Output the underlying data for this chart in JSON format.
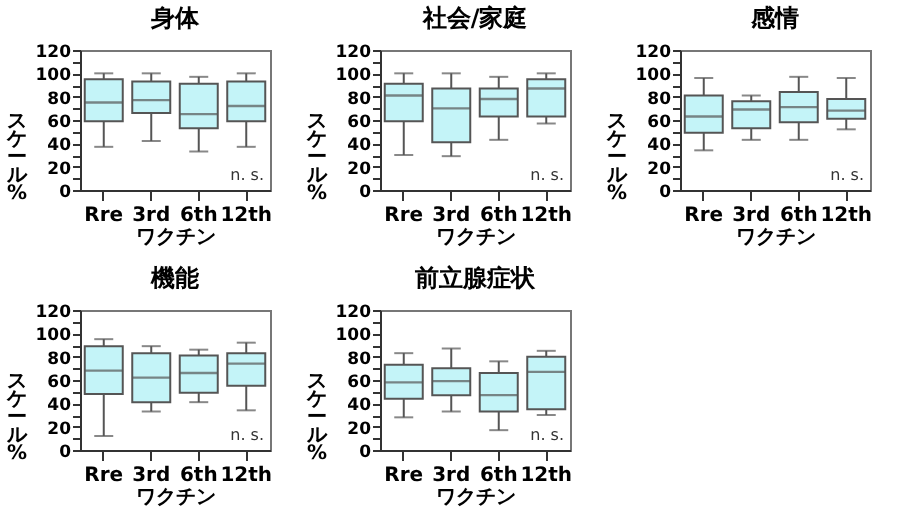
{
  "chart_data": [
    {
      "type": "box",
      "title": "身体",
      "xlabel": "ワクチン",
      "ylabel": "スケール%",
      "categories": [
        "Rre",
        "3rd",
        "6th",
        "12th"
      ],
      "color": "#c4f4f8",
      "ylim": [
        0,
        120
      ],
      "yticks": [
        0,
        {
          "value": 10,
          "label": null
        },
        20,
        {
          "value": 30,
          "label": null
        },
        40,
        {
          "value": 50,
          "label": null
        },
        60,
        {
          "value": 70,
          "label": null
        },
        80,
        {
          "value": 90,
          "label": null
        },
        100,
        {
          "value": 110,
          "label": null
        },
        120
      ],
      "annotations": [
        "n. s."
      ],
      "boxes": [
        {
          "low": 37,
          "q1": 59,
          "median": 75,
          "q3": 95,
          "high": 100
        },
        {
          "low": 42,
          "q1": 66,
          "median": 77,
          "q3": 93,
          "high": 100
        },
        {
          "low": 33,
          "q1": 53,
          "median": 65,
          "q3": 91,
          "high": 97
        },
        {
          "low": 37,
          "q1": 59,
          "median": 72,
          "q3": 93,
          "high": 100
        }
      ]
    },
    {
      "type": "box",
      "title": "社会/家庭",
      "xlabel": "ワクチン",
      "ylabel": "スケール%",
      "categories": [
        "Rre",
        "3rd",
        "6th",
        "12th"
      ],
      "color": "#c4f4f8",
      "ylim": [
        0,
        120
      ],
      "yticks": [
        0,
        {
          "value": 10,
          "label": null
        },
        20,
        {
          "value": 30,
          "label": null
        },
        40,
        {
          "value": 50,
          "label": null
        },
        60,
        {
          "value": 70,
          "label": null
        },
        80,
        {
          "value": 90,
          "label": null
        },
        100,
        {
          "value": 110,
          "label": null
        },
        120
      ],
      "annotations": [
        "n. s."
      ],
      "boxes": [
        {
          "low": 30,
          "q1": 59,
          "median": 81,
          "q3": 91,
          "high": 100
        },
        {
          "low": 29,
          "q1": 41,
          "median": 70,
          "q3": 87,
          "high": 100
        },
        {
          "low": 43,
          "q1": 63,
          "median": 78,
          "q3": 87,
          "high": 97
        },
        {
          "low": 57,
          "q1": 63,
          "median": 87,
          "q3": 95,
          "high": 100
        }
      ]
    },
    {
      "type": "box",
      "title": "感情",
      "xlabel": "ワクチン",
      "ylabel": "スケール%",
      "categories": [
        "Rre",
        "3rd",
        "6th",
        "12th"
      ],
      "color": "#c4f4f8",
      "ylim": [
        0,
        120
      ],
      "yticks": [
        0,
        {
          "value": 10,
          "label": null
        },
        20,
        {
          "value": 30,
          "label": null
        },
        40,
        {
          "value": 50,
          "label": null
        },
        60,
        {
          "value": 70,
          "label": null
        },
        80,
        {
          "value": 90,
          "label": null
        },
        100,
        {
          "value": 110,
          "label": null
        },
        120
      ],
      "annotations": [
        "n. s."
      ],
      "boxes": [
        {
          "low": 34,
          "q1": 49,
          "median": 63,
          "q3": 81,
          "high": 96
        },
        {
          "low": 43,
          "q1": 53,
          "median": 69,
          "q3": 76,
          "high": 81
        },
        {
          "low": 43,
          "q1": 58,
          "median": 71,
          "q3": 84,
          "high": 97
        },
        {
          "low": 52,
          "q1": 61,
          "median": 68,
          "q3": 78,
          "high": 96
        }
      ]
    },
    {
      "type": "box",
      "title": "機能",
      "xlabel": "ワクチン",
      "ylabel": "スケール%",
      "categories": [
        "Rre",
        "3rd",
        "6th",
        "12th"
      ],
      "color": "#c4f4f8",
      "ylim": [
        0,
        120
      ],
      "yticks": [
        0,
        {
          "value": 10,
          "label": null
        },
        20,
        {
          "value": 30,
          "label": null
        },
        40,
        {
          "value": 50,
          "label": null
        },
        60,
        {
          "value": 70,
          "label": null
        },
        80,
        {
          "value": 90,
          "label": null
        },
        100,
        {
          "value": 110,
          "label": null
        },
        120
      ],
      "annotations": [
        "n. s."
      ],
      "boxes": [
        {
          "low": 12,
          "q1": 48,
          "median": 68,
          "q3": 89,
          "high": 95
        },
        {
          "low": 33,
          "q1": 41,
          "median": 62,
          "q3": 83,
          "high": 89
        },
        {
          "low": 41,
          "q1": 49,
          "median": 66,
          "q3": 81,
          "high": 86
        },
        {
          "low": 34,
          "q1": 55,
          "median": 74,
          "q3": 83,
          "high": 92
        }
      ]
    },
    {
      "type": "box",
      "title": "前立腺症状",
      "xlabel": "ワクチン",
      "ylabel": "スケール%",
      "categories": [
        "Rre",
        "3rd",
        "6th",
        "12th"
      ],
      "color": "#c4f4f8",
      "ylim": [
        0,
        120
      ],
      "yticks": [
        0,
        {
          "value": 10,
          "label": null
        },
        20,
        {
          "value": 30,
          "label": null
        },
        40,
        {
          "value": 50,
          "label": null
        },
        60,
        {
          "value": 70,
          "label": null
        },
        80,
        {
          "value": 90,
          "label": null
        },
        100,
        {
          "value": 110,
          "label": null
        },
        120
      ],
      "annotations": [
        "n. s."
      ],
      "boxes": [
        {
          "low": 28,
          "q1": 44,
          "median": 58,
          "q3": 73,
          "high": 83
        },
        {
          "low": 33,
          "q1": 47,
          "median": 59,
          "q3": 70,
          "high": 87
        },
        {
          "low": 17,
          "q1": 33,
          "median": 47,
          "q3": 66,
          "high": 76
        },
        {
          "low": 30,
          "q1": 35,
          "median": 67,
          "q3": 80,
          "high": 85
        }
      ]
    }
  ]
}
